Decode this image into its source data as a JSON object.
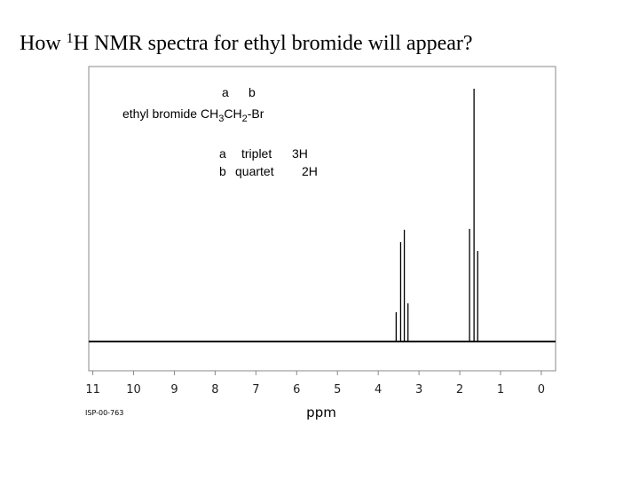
{
  "title": {
    "before": "How ",
    "sup": "1",
    "after": "H NMR spectra for ethyl bromide will appear?"
  },
  "chart_data": {
    "type": "stick",
    "x": [
      3.56,
      3.45,
      3.36,
      3.27,
      1.76,
      1.65,
      1.56
    ],
    "values": [
      33,
      112,
      126,
      43,
      127,
      285,
      102
    ],
    "xlim": [
      11.1,
      -0.35
    ],
    "ylim": [
      0,
      310
    ],
    "xticks": [
      11,
      10,
      9,
      8,
      7,
      6,
      5,
      4,
      3,
      2,
      1,
      0
    ],
    "xlabel": "ppm",
    "color": "#000000",
    "annotations": {
      "labels": [
        "a",
        "b"
      ],
      "compound": "ethyl bromide",
      "formula": [
        "CH",
        "3",
        "CH",
        "2",
        "-Br"
      ],
      "assignments": [
        [
          "a",
          "triplet",
          "3H"
        ],
        [
          "b",
          "quartet",
          "2H"
        ]
      ]
    }
  },
  "footnote": "ISP-00-763"
}
